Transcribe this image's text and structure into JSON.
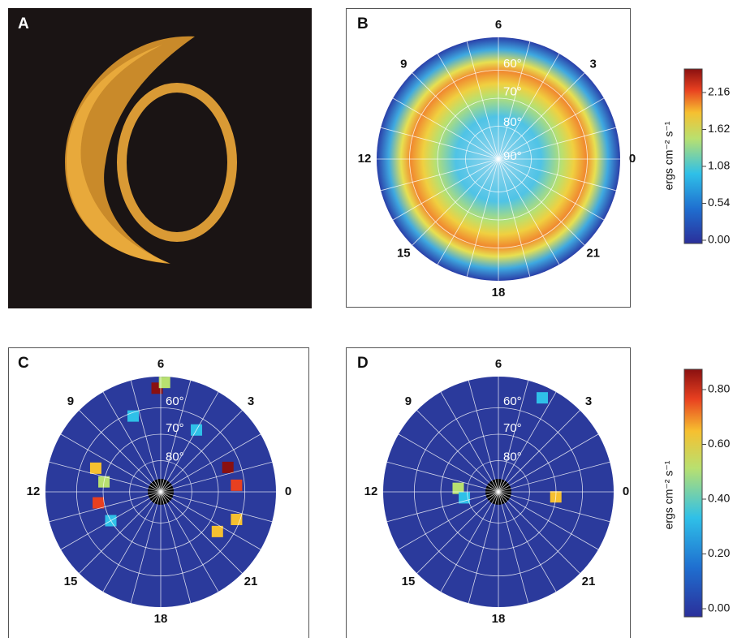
{
  "panels": [
    {
      "label": "A"
    },
    {
      "label": "B",
      "hour_labels": [
        "6",
        "3",
        "0",
        "21",
        "18",
        "15",
        "12",
        "9"
      ],
      "latitude_labels": [
        "60°",
        "70°",
        "80°",
        "90°"
      ]
    },
    {
      "label": "C",
      "hour_labels": [
        "6",
        "3",
        "0",
        "21",
        "18",
        "15",
        "12",
        "9"
      ],
      "latitude_labels": [
        "60°",
        "70°",
        "80°"
      ]
    },
    {
      "label": "D",
      "hour_labels": [
        "6",
        "3",
        "0",
        "21",
        "18",
        "15",
        "12",
        "9"
      ],
      "latitude_labels": [
        "60°",
        "70°",
        "80°"
      ]
    }
  ],
  "colorbars": [
    {
      "label": "ergs cm⁻² s⁻¹",
      "ticks": [
        "2.16",
        "1.62",
        "1.08",
        "0.54",
        "0.00"
      ]
    },
    {
      "label": "ergs cm⁻² s⁻¹",
      "ticks": [
        "0.80",
        "0.60",
        "0.40",
        "0.20",
        "0.00"
      ]
    }
  ]
}
